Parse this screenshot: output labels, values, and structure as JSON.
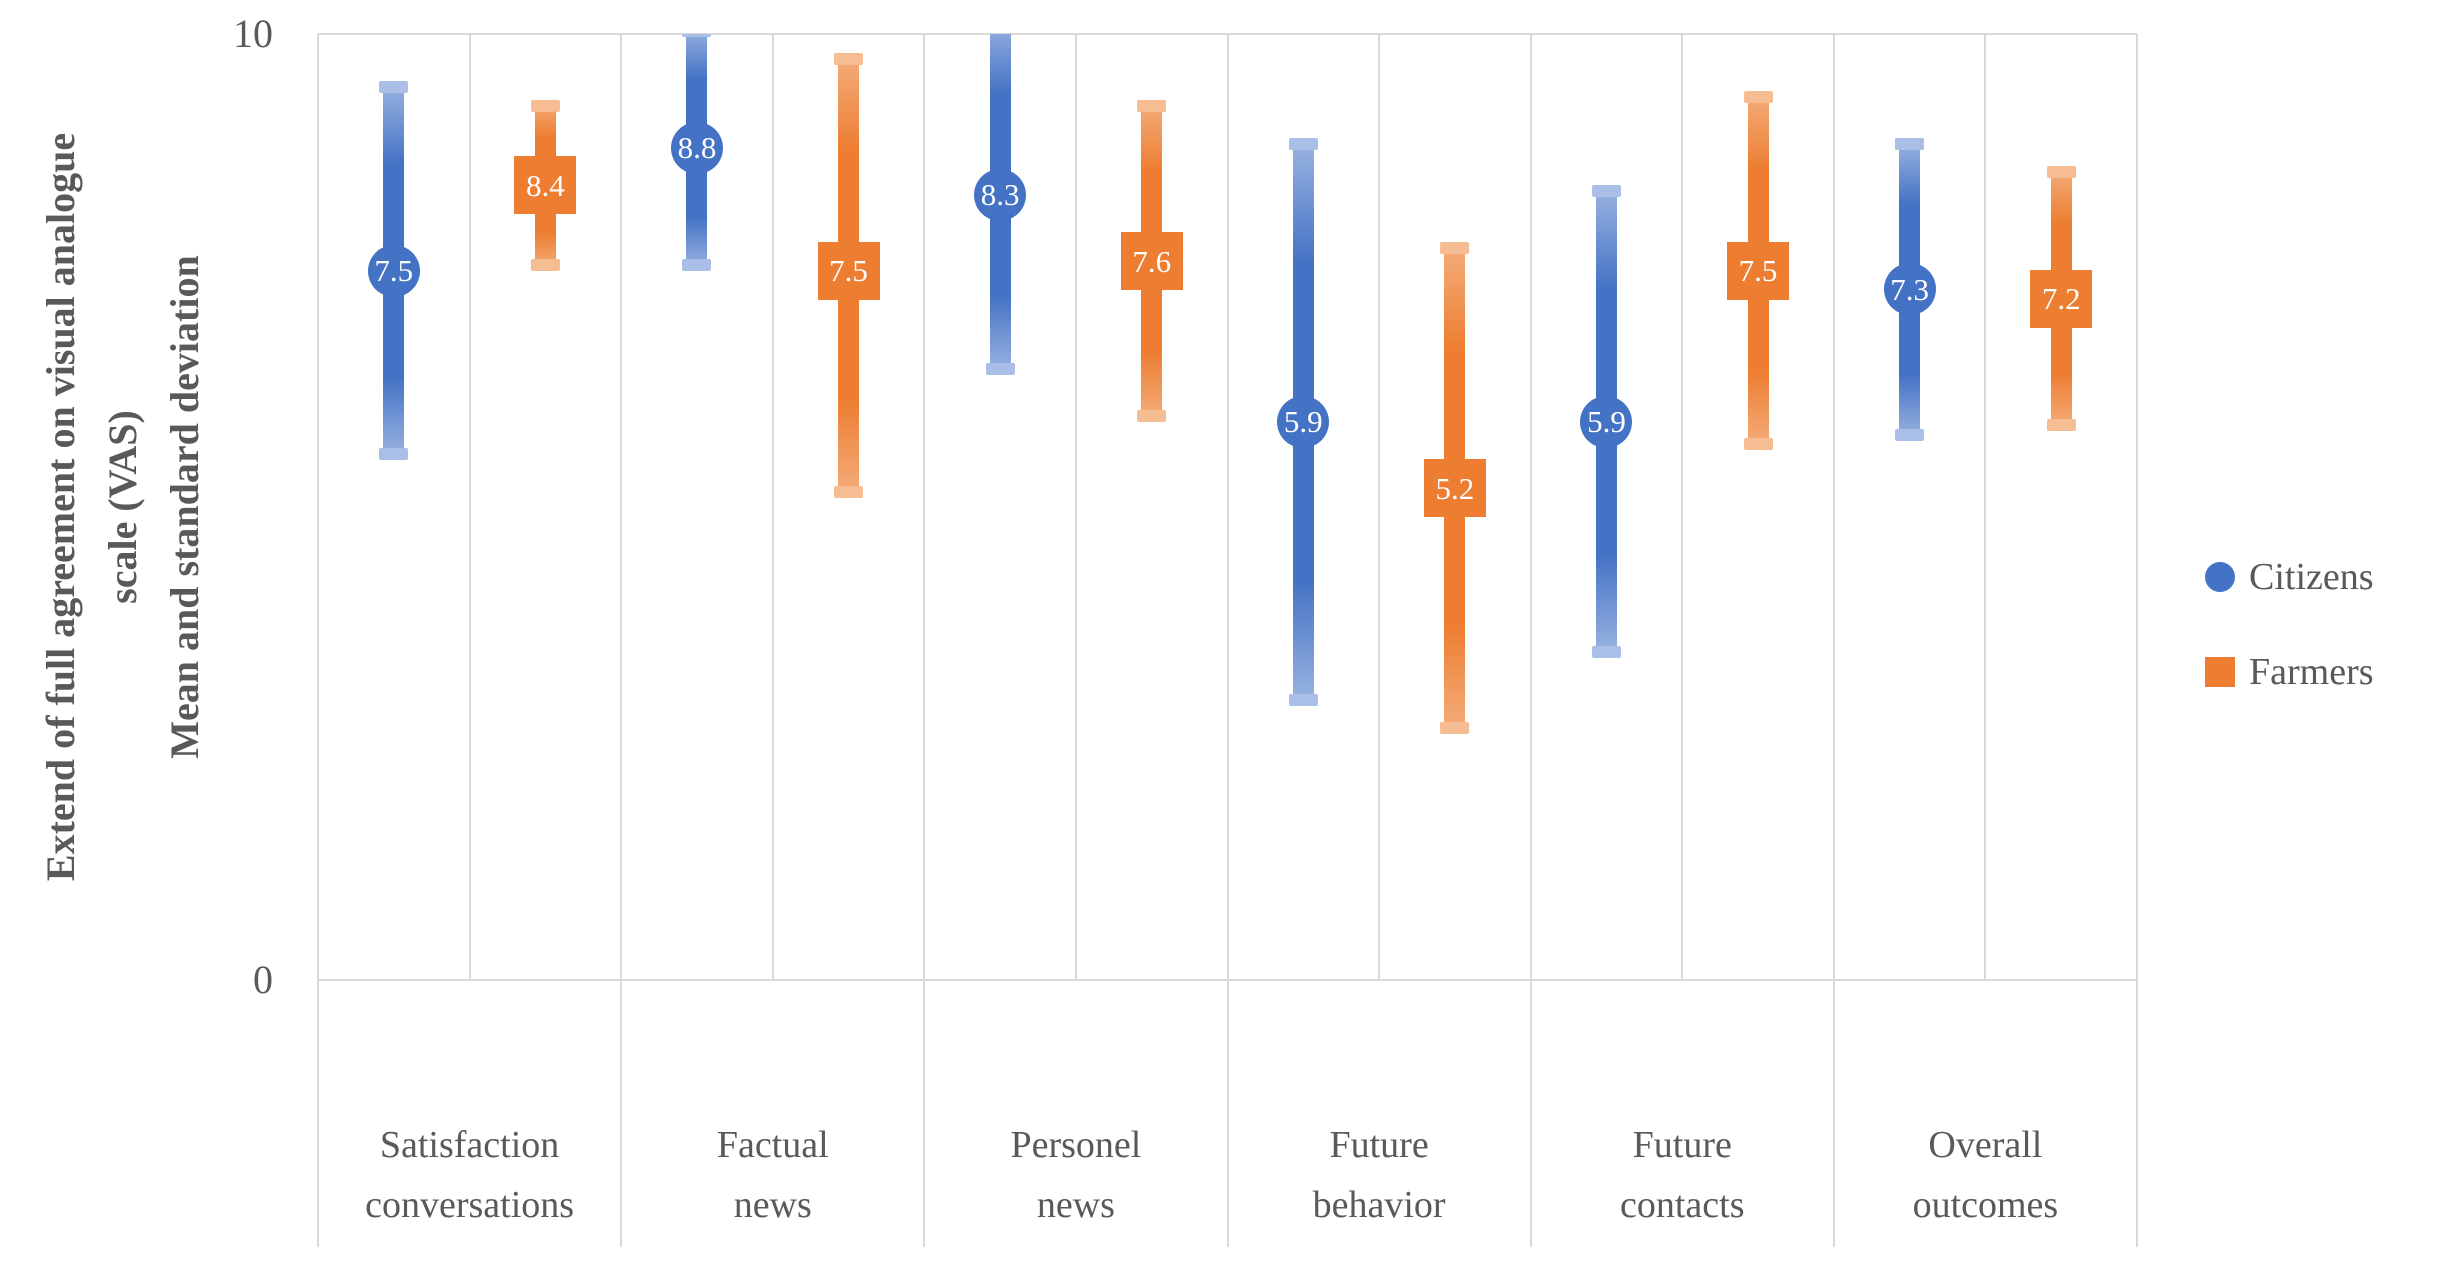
{
  "chart_data": {
    "type": "scatter",
    "description": "Mean and standard-deviation dot plot with thick vertical error bars, clustered by category",
    "categories": [
      [
        "Satisfaction",
        "conversations"
      ],
      [
        "Factual",
        "news"
      ],
      [
        "Personel",
        "news"
      ],
      [
        "Future",
        "behavior"
      ],
      [
        "Future",
        "contacts"
      ],
      [
        "Overall",
        "outcomes"
      ]
    ],
    "y_axis": {
      "label_lines": [
        "Extend of full agreement on visual analogue",
        "scale (VAS)",
        "Mean and standard deviation"
      ],
      "ticks": [
        {
          "label": "10",
          "value": 10
        },
        {
          "label": "0",
          "value": 0
        }
      ],
      "min": 0,
      "max": 10,
      "gridlines_vertical_only": true
    },
    "series": [
      {
        "name": "Citizens",
        "marker": "circle",
        "color": "#4472C4",
        "tip_color": "#9DB6E2",
        "cap_color": "#A9BFE7",
        "values": [
          7.5,
          8.8,
          8.3,
          5.9,
          5.9,
          7.3
        ],
        "error_low": [
          5.5,
          7.5,
          6.4,
          2.9,
          3.4,
          5.7
        ],
        "error_high": [
          9.5,
          10.1,
          10.2,
          8.9,
          8.4,
          8.9
        ]
      },
      {
        "name": "Farmers",
        "marker": "square",
        "color": "#ED7D31",
        "tip_color": "#F4AF7E",
        "cap_color": "#F6BD92",
        "values": [
          8.4,
          7.5,
          7.6,
          5.2,
          7.5,
          7.2
        ],
        "error_low": [
          7.5,
          5.1,
          5.9,
          2.6,
          5.6,
          5.8
        ],
        "error_high": [
          9.3,
          9.8,
          9.3,
          7.8,
          9.4,
          8.6
        ]
      }
    ],
    "legend_position": "right",
    "grid_color": "#D9D9D9",
    "text_color": "#595959"
  }
}
